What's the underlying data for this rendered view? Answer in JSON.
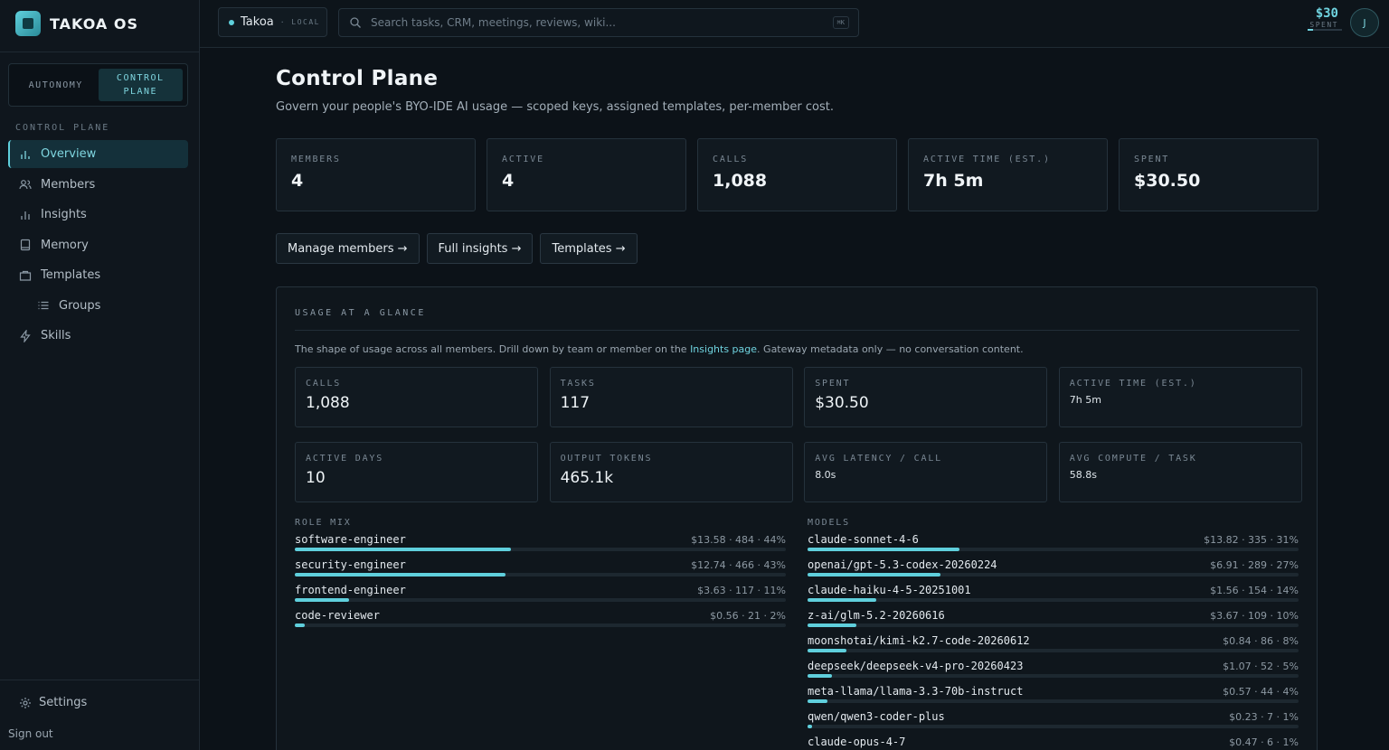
{
  "brand": {
    "name": "TAKOA OS"
  },
  "mode_toggle": {
    "autonomy": "AUTONOMY",
    "control_plane_line1": "CONTROL",
    "control_plane_line2": "PLANE"
  },
  "sidebar": {
    "section": "CONTROL PLANE",
    "items": [
      {
        "label": "Overview",
        "icon": "chart-icon",
        "active": true
      },
      {
        "label": "Members",
        "icon": "users-icon"
      },
      {
        "label": "Insights",
        "icon": "bar-chart-icon"
      },
      {
        "label": "Memory",
        "icon": "book-icon"
      },
      {
        "label": "Templates",
        "icon": "folder-icon"
      },
      {
        "label": "Groups",
        "icon": "list-icon",
        "sub": true
      },
      {
        "label": "Skills",
        "icon": "bolt-icon"
      }
    ],
    "settings": "Settings",
    "signout": "Sign out"
  },
  "topbar": {
    "workspace": "Takoa",
    "workspace_tag": "· LOCAL",
    "search_placeholder": "Search tasks, CRM, meetings, reviews, wiki...",
    "shortcut": "⌘K",
    "spent_value": "$30",
    "spent_label": "SPENT",
    "spent_fraction": 0.15,
    "avatar": "J"
  },
  "page": {
    "title": "Control Plane",
    "subtitle": "Govern your people's BYO-IDE AI usage — scoped keys, assigned templates, per-member cost."
  },
  "kpis": [
    {
      "label": "MEMBERS",
      "value": "4"
    },
    {
      "label": "ACTIVE",
      "value": "4"
    },
    {
      "label": "CALLS",
      "value": "1,088"
    },
    {
      "label": "ACTIVE TIME (EST.)",
      "value": "7h 5m"
    },
    {
      "label": "SPENT",
      "value": "$30.50"
    }
  ],
  "actions": [
    "Manage members →",
    "Full insights →",
    "Templates →"
  ],
  "usage": {
    "title": "USAGE AT A GLANCE",
    "desc_before": "The shape of usage across all members. Drill down by team or member on the ",
    "desc_link": "Insights page",
    "desc_after": ". Gateway metadata only — no conversation content.",
    "stats": [
      {
        "label": "CALLS",
        "value": "1,088"
      },
      {
        "label": "TASKS",
        "value": "117"
      },
      {
        "label": "SPENT",
        "value": "$30.50"
      },
      {
        "label": "ACTIVE TIME (EST.)",
        "value": "7h 5m",
        "small": true
      },
      {
        "label": "ACTIVE DAYS",
        "value": "10"
      },
      {
        "label": "OUTPUT TOKENS",
        "value": "465.1k"
      },
      {
        "label": "AVG LATENCY / CALL",
        "value": "8.0s",
        "small": true
      },
      {
        "label": "AVG COMPUTE / TASK",
        "value": "58.8s",
        "small": true
      }
    ],
    "role_mix": {
      "title": "ROLE MIX",
      "rows": [
        {
          "name": "software-engineer",
          "meta": "$13.58 · 484 · 44%",
          "pct": 44
        },
        {
          "name": "security-engineer",
          "meta": "$12.74 · 466 · 43%",
          "pct": 43
        },
        {
          "name": "frontend-engineer",
          "meta": "$3.63 · 117 · 11%",
          "pct": 11
        },
        {
          "name": "code-reviewer",
          "meta": "$0.56 · 21 · 2%",
          "pct": 2
        }
      ]
    },
    "models": {
      "title": "MODELS",
      "rows": [
        {
          "name": "claude-sonnet-4-6",
          "meta": "$13.82 · 335 · 31%",
          "pct": 31
        },
        {
          "name": "openai/gpt-5.3-codex-20260224",
          "meta": "$6.91 · 289 · 27%",
          "pct": 27
        },
        {
          "name": "claude-haiku-4-5-20251001",
          "meta": "$1.56 · 154 · 14%",
          "pct": 14
        },
        {
          "name": "z-ai/glm-5.2-20260616",
          "meta": "$3.67 · 109 · 10%",
          "pct": 10
        },
        {
          "name": "moonshotai/kimi-k2.7-code-20260612",
          "meta": "$0.84 · 86 · 8%",
          "pct": 8
        },
        {
          "name": "deepseek/deepseek-v4-pro-20260423",
          "meta": "$1.07 · 52 · 5%",
          "pct": 5
        },
        {
          "name": "meta-llama/llama-3.3-70b-instruct",
          "meta": "$0.57 · 44 · 4%",
          "pct": 4
        },
        {
          "name": "qwen/qwen3-coder-plus",
          "meta": "$0.23 · 7 · 1%",
          "pct": 1
        },
        {
          "name": "claude-opus-4-7",
          "meta": "$0.47 · 6 · 1%",
          "pct": 1
        }
      ]
    }
  },
  "colors": {
    "accent": "#5fcfdc",
    "background": "#0c1218"
  }
}
